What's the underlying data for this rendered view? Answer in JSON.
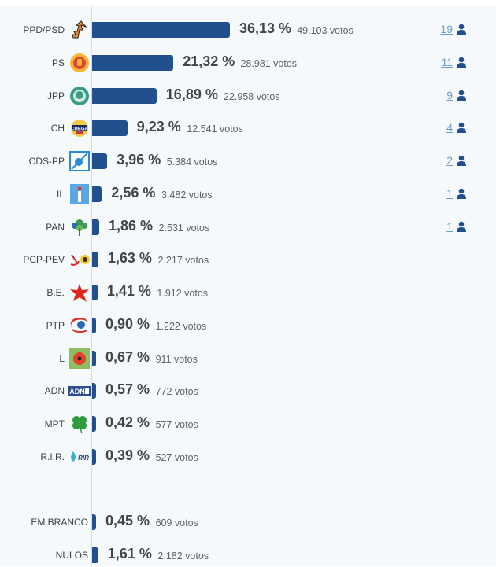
{
  "chart_data": {
    "type": "bar",
    "orientation": "horizontal",
    "title": "",
    "xlabel": "",
    "ylabel": "",
    "grid": false,
    "categories": [
      "PPD/PSD",
      "PS",
      "JPP",
      "CH",
      "CDS-PP",
      "IL",
      "PAN",
      "PCP-PEV",
      "B.E.",
      "PTP",
      "L",
      "ADN",
      "MPT",
      "R.I.R.",
      "EM BRANCO",
      "NULOS"
    ],
    "values": [
      36.13,
      21.32,
      16.89,
      9.23,
      3.96,
      2.56,
      1.86,
      1.63,
      1.41,
      0.9,
      0.67,
      0.57,
      0.42,
      0.39,
      0.45,
      1.61
    ],
    "votes": [
      49103,
      28981,
      22958,
      12541,
      5384,
      3482,
      2531,
      2217,
      1912,
      1222,
      911,
      772,
      577,
      527,
      609,
      2182
    ],
    "seats": [
      19,
      11,
      9,
      4,
      2,
      1,
      1,
      null,
      null,
      null,
      null,
      null,
      null,
      null,
      null,
      null
    ],
    "bar_color": "#224f8e"
  },
  "rows": [
    {
      "label": "PPD/PSD",
      "pct": "36,13 %",
      "votes": "49.103 votos",
      "seats": "19",
      "logo": "psd-arrow-icon",
      "value": 36.13
    },
    {
      "label": "PS",
      "pct": "21,32 %",
      "votes": "28.981 votos",
      "seats": "11",
      "logo": "ps-fist-icon",
      "value": 21.32
    },
    {
      "label": "JPP",
      "pct": "16,89 %",
      "votes": "22.958 votos",
      "seats": "9",
      "logo": "jpp-circle-icon",
      "value": 16.89
    },
    {
      "label": "CH",
      "pct": "9,23 %",
      "votes": "12.541 votos",
      "seats": "4",
      "logo": "chega-badge-icon",
      "value": 9.23
    },
    {
      "label": "CDS-PP",
      "pct": "3,96 %",
      "votes": "5.384 votos",
      "seats": "2",
      "logo": "cds-ball-icon",
      "value": 3.96
    },
    {
      "label": "IL",
      "pct": "2,56 %",
      "votes": "3.482 votos",
      "seats": "1",
      "logo": "il-i-icon",
      "value": 2.56
    },
    {
      "label": "PAN",
      "pct": "1,86 %",
      "votes": "2.531 votos",
      "seats": "1",
      "logo": "pan-tree-icon",
      "value": 1.86
    },
    {
      "label": "PCP-PEV",
      "pct": "1,63 %",
      "votes": "2.217 votos",
      "seats": "",
      "logo": "pcp-hammer-sickle-icon",
      "value": 1.63
    },
    {
      "label": "B.E.",
      "pct": "1,41 %",
      "votes": "1.912 votos",
      "seats": "",
      "logo": "be-star-icon",
      "value": 1.41
    },
    {
      "label": "PTP",
      "pct": "0,90 %",
      "votes": "1.222 votos",
      "seats": "",
      "logo": "ptp-swoosh-icon",
      "value": 0.9
    },
    {
      "label": "L",
      "pct": "0,67 %",
      "votes": "911 votos",
      "seats": "",
      "logo": "livre-poppy-icon",
      "value": 0.67
    },
    {
      "label": "ADN",
      "pct": "0,57 %",
      "votes": "772 votos",
      "seats": "",
      "logo": "adn-text-icon",
      "value": 0.57
    },
    {
      "label": "MPT",
      "pct": "0,42 %",
      "votes": "577 votos",
      "seats": "",
      "logo": "mpt-clover-icon",
      "value": 0.42
    },
    {
      "label": "R.I.R.",
      "pct": "0,39 %",
      "votes": "527 votos",
      "seats": "",
      "logo": "rir-drop-icon",
      "value": 0.39
    }
  ],
  "extra_rows": [
    {
      "label": "EM BRANCO",
      "pct": "0,45 %",
      "votes": "609 votos",
      "value": 0.45
    },
    {
      "label": "NULOS",
      "pct": "1,61 %",
      "votes": "2.182 votos",
      "value": 1.61
    }
  ]
}
